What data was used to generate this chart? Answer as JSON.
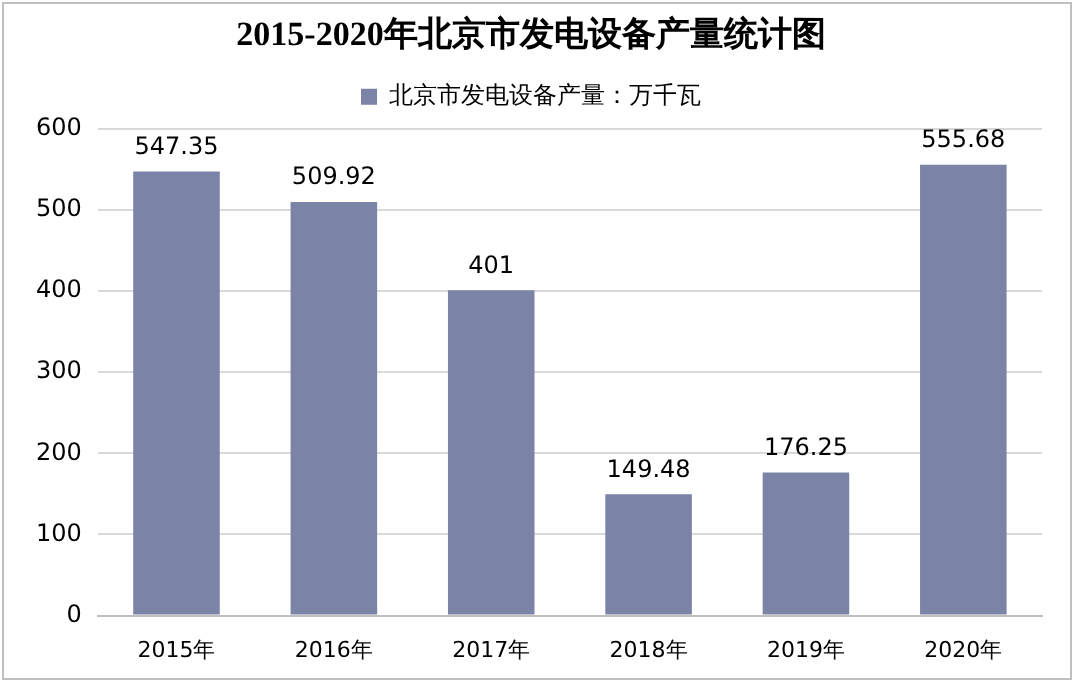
{
  "chart_data": {
    "type": "bar",
    "title": "2015-2020年北京市发电设备产量统计图",
    "categories": [
      "2015年",
      "2016年",
      "2017年",
      "2018年",
      "2019年",
      "2020年"
    ],
    "series": [
      {
        "name": "北京市发电设备产量：万千瓦",
        "color": "#7b83a7",
        "values": [
          547.35,
          509.92,
          401,
          149.48,
          176.25,
          555.68
        ]
      }
    ],
    "ylim": [
      0,
      600
    ],
    "yticks": [
      0,
      100,
      200,
      300,
      400,
      500,
      600
    ],
    "grid": "y",
    "legend": "top",
    "data_labels": true
  }
}
